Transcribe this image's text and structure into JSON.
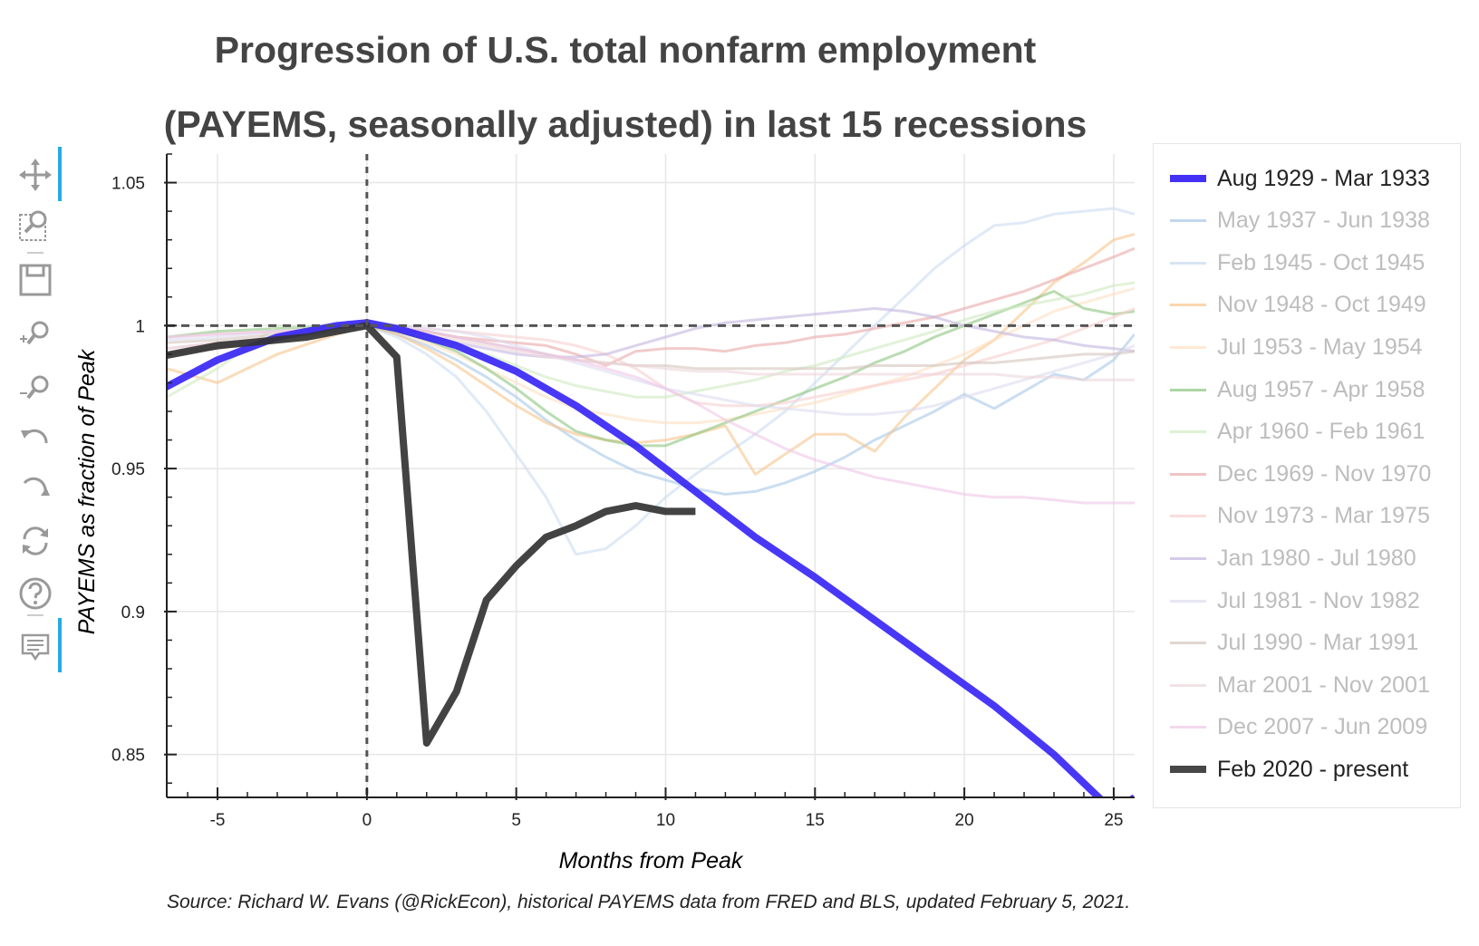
{
  "title_line1": "Progression of U.S. total nonfarm employment",
  "title_line2": "(PAYEMS, seasonally adjusted) in last 15 recessions",
  "source": "Source: Richard W. Evans (@RickEcon), historical PAYEMS data from FRED and BLS, updated February 5, 2021.",
  "toolbar": {
    "tools": [
      {
        "name": "pan-icon",
        "active": true
      },
      {
        "name": "box-zoom-icon",
        "active": false
      },
      {
        "name": "save-icon",
        "active": false
      },
      {
        "name": "zoom-in-icon",
        "active": false
      },
      {
        "name": "zoom-out-icon",
        "active": false
      },
      {
        "name": "undo-icon",
        "active": false
      },
      {
        "name": "redo-icon",
        "active": false
      },
      {
        "name": "reset-icon",
        "active": false
      },
      {
        "name": "help-icon",
        "active": false
      },
      {
        "name": "hover-icon",
        "active": true
      }
    ],
    "accent_color": "#26aae1"
  },
  "chart_data": {
    "type": "line",
    "xlabel": "Months from Peak",
    "ylabel": "PAYEMS as fraction of Peak",
    "xlim": [
      -6.7,
      25.7
    ],
    "ylim": [
      0.835,
      1.06
    ],
    "xticks": [
      -5,
      0,
      5,
      10,
      15,
      20,
      25
    ],
    "xtick_labels": [
      "-5",
      "0",
      "5",
      "10",
      "15",
      "20",
      "25"
    ],
    "yticks": [
      0.85,
      0.9,
      0.95,
      1.0,
      1.05
    ],
    "ytick_labels": [
      "0.85",
      "0.9",
      "0.95",
      "1",
      "1.05"
    ],
    "grid": true,
    "reference_lines": {
      "vertical_x": 0,
      "horizontal_y": 1.0
    },
    "legend_position": "right",
    "series": [
      {
        "name": "Aug 1929 - Mar 1933",
        "color": "#2f1cf5",
        "opacity": 0.88,
        "width": 8,
        "x": [
          -7,
          -5,
          -3,
          -1,
          0,
          1,
          3,
          5,
          7,
          9,
          11,
          13,
          15,
          17,
          19,
          21,
          23,
          25,
          25.7
        ],
        "y": [
          0.977,
          0.988,
          0.996,
          1.0,
          1.001,
          0.999,
          0.993,
          0.984,
          0.972,
          0.958,
          0.942,
          0.926,
          0.912,
          0.897,
          0.882,
          0.867,
          0.85,
          0.83,
          0.835
        ]
      },
      {
        "name": "May 1937 - Jun 1938",
        "color": "#a6c8e8",
        "opacity": 0.6,
        "width": 3,
        "x": [
          -6.7,
          -5,
          -3,
          -1,
          0,
          1,
          2,
          3,
          4,
          5,
          6,
          7,
          8,
          9,
          10,
          11,
          12,
          13,
          14,
          15,
          16,
          17,
          18,
          19,
          20,
          21,
          22,
          23,
          24,
          25,
          25.7
        ],
        "y": [
          0.99,
          0.992,
          0.995,
          0.998,
          1.0,
          0.997,
          0.993,
          0.988,
          0.982,
          0.975,
          0.967,
          0.96,
          0.954,
          0.949,
          0.946,
          0.943,
          0.941,
          0.942,
          0.945,
          0.949,
          0.954,
          0.96,
          0.965,
          0.97,
          0.976,
          0.971,
          0.977,
          0.983,
          0.981,
          0.988,
          0.997
        ]
      },
      {
        "name": "Feb 1945 - Oct 1945",
        "color": "#c6d8f0",
        "opacity": 0.55,
        "width": 3,
        "x": [
          -6.7,
          -5,
          -3,
          -1,
          0,
          1,
          2,
          3,
          4,
          5,
          6,
          7,
          8,
          9,
          10,
          11,
          12,
          13,
          14,
          15,
          16,
          17,
          18,
          19,
          20,
          21,
          22,
          23,
          24,
          25,
          25.7
        ],
        "y": [
          0.992,
          0.994,
          0.996,
          0.998,
          1.0,
          0.996,
          0.99,
          0.982,
          0.97,
          0.955,
          0.94,
          0.92,
          0.922,
          0.93,
          0.94,
          0.948,
          0.955,
          0.962,
          0.97,
          0.98,
          0.99,
          1.0,
          1.01,
          1.02,
          1.028,
          1.035,
          1.036,
          1.039,
          1.04,
          1.041,
          1.039
        ]
      },
      {
        "name": "Nov 1948 - Oct 1949",
        "color": "#f7c48c",
        "opacity": 0.6,
        "width": 3,
        "x": [
          -6.7,
          -5,
          -3,
          -1,
          0,
          1,
          2,
          3,
          4,
          5,
          6,
          7,
          8,
          9,
          10,
          11,
          12,
          13,
          14,
          15,
          16,
          17,
          18,
          19,
          20,
          21,
          22,
          23,
          24,
          25,
          25.7
        ],
        "y": [
          0.985,
          0.98,
          0.99,
          0.997,
          1.0,
          0.997,
          0.992,
          0.986,
          0.979,
          0.972,
          0.966,
          0.962,
          0.96,
          0.959,
          0.96,
          0.962,
          0.965,
          0.948,
          0.955,
          0.962,
          0.962,
          0.956,
          0.968,
          0.978,
          0.988,
          0.995,
          1.005,
          1.015,
          1.022,
          1.03,
          1.032
        ]
      },
      {
        "name": "Jul 1953 - May 1954",
        "color": "#fde0c2",
        "opacity": 0.6,
        "width": 3,
        "x": [
          -6.7,
          -5,
          -3,
          -1,
          0,
          1,
          2,
          3,
          4,
          5,
          6,
          7,
          8,
          9,
          10,
          11,
          12,
          13,
          14,
          15,
          16,
          17,
          18,
          19,
          20,
          21,
          22,
          23,
          24,
          25,
          25.7
        ],
        "y": [
          0.99,
          0.993,
          0.996,
          0.999,
          1.0,
          0.998,
          0.994,
          0.99,
          0.985,
          0.98,
          0.975,
          0.971,
          0.969,
          0.967,
          0.966,
          0.966,
          0.967,
          0.969,
          0.971,
          0.973,
          0.976,
          0.979,
          0.982,
          0.986,
          0.99,
          0.995,
          1.0,
          1.005,
          1.008,
          1.011,
          1.013
        ]
      },
      {
        "name": "Aug 1957 - Apr 1958",
        "color": "#8cc47e",
        "opacity": 0.6,
        "width": 3,
        "x": [
          -6.7,
          -5,
          -3,
          -1,
          0,
          1,
          2,
          3,
          4,
          5,
          6,
          7,
          8,
          9,
          10,
          11,
          12,
          13,
          14,
          15,
          16,
          17,
          18,
          19,
          20,
          21,
          22,
          23,
          24,
          25,
          25.7
        ],
        "y": [
          0.996,
          0.998,
          0.999,
          1.0,
          1.0,
          0.998,
          0.995,
          0.991,
          0.985,
          0.978,
          0.97,
          0.963,
          0.96,
          0.958,
          0.958,
          0.962,
          0.966,
          0.97,
          0.974,
          0.978,
          0.982,
          0.987,
          0.991,
          0.996,
          1.0,
          1.004,
          1.008,
          1.012,
          1.006,
          1.004,
          1.005
        ]
      },
      {
        "name": "Apr 1960 - Feb 1961",
        "color": "#cfeac0",
        "opacity": 0.6,
        "width": 3,
        "x": [
          -6.7,
          -5,
          -3,
          -1,
          0,
          1,
          2,
          3,
          4,
          5,
          6,
          7,
          8,
          9,
          10,
          11,
          12,
          13,
          14,
          15,
          16,
          17,
          18,
          19,
          20,
          21,
          22,
          23,
          24,
          25,
          25.7
        ],
        "y": [
          0.975,
          0.985,
          1.0,
          0.999,
          1.0,
          0.999,
          0.996,
          0.993,
          0.99,
          0.986,
          0.982,
          0.979,
          0.977,
          0.975,
          0.975,
          0.977,
          0.979,
          0.981,
          0.984,
          0.986,
          0.989,
          0.992,
          0.995,
          0.998,
          1.002,
          1.005,
          1.007,
          1.009,
          1.011,
          1.014,
          1.015
        ]
      },
      {
        "name": "Dec 1969 - Nov 1970",
        "color": "#e9a9a9",
        "opacity": 0.6,
        "width": 3,
        "x": [
          -6.7,
          -5,
          -3,
          -1,
          0,
          1,
          2,
          3,
          4,
          5,
          6,
          7,
          8,
          9,
          10,
          11,
          12,
          13,
          14,
          15,
          16,
          17,
          18,
          19,
          20,
          21,
          22,
          23,
          24,
          25,
          25.7
        ],
        "y": [
          0.99,
          0.992,
          0.995,
          0.998,
          1.0,
          0.999,
          0.998,
          0.996,
          0.995,
          0.994,
          0.993,
          0.99,
          0.986,
          0.991,
          0.992,
          0.992,
          0.991,
          0.993,
          0.994,
          0.996,
          0.997,
          0.999,
          1.001,
          1.003,
          1.006,
          1.009,
          1.012,
          1.016,
          1.02,
          1.024,
          1.027
        ]
      },
      {
        "name": "Nov 1973 - Mar 1975",
        "color": "#f7cfcf",
        "opacity": 0.6,
        "width": 3,
        "x": [
          -6.7,
          -5,
          -3,
          -1,
          0,
          1,
          2,
          3,
          4,
          5,
          6,
          7,
          8,
          9,
          10,
          11,
          12,
          13,
          14,
          15,
          16,
          17,
          18,
          19,
          20,
          21,
          22,
          23,
          24,
          25,
          25.7
        ],
        "y": [
          0.992,
          0.994,
          0.996,
          0.998,
          1.0,
          1.0,
          0.999,
          0.998,
          0.997,
          0.996,
          0.995,
          0.993,
          0.99,
          0.985,
          0.978,
          0.973,
          0.972,
          0.972,
          0.973,
          0.975,
          0.977,
          0.979,
          0.981,
          0.983,
          0.986,
          0.989,
          0.992,
          0.995,
          0.999,
          1.003,
          1.006
        ]
      },
      {
        "name": "Jan 1980 - Jul 1980",
        "color": "#c3b5e0",
        "opacity": 0.6,
        "width": 3,
        "x": [
          -6.7,
          -5,
          -3,
          -1,
          0,
          1,
          2,
          3,
          4,
          5,
          6,
          7,
          8,
          9,
          10,
          11,
          12,
          13,
          14,
          15,
          16,
          17,
          18,
          19,
          20,
          21,
          22,
          23,
          24,
          25,
          25.7
        ],
        "y": [
          0.99,
          0.993,
          0.996,
          0.998,
          1.0,
          0.999,
          0.997,
          0.994,
          0.992,
          0.99,
          0.989,
          0.989,
          0.99,
          0.993,
          0.996,
          0.999,
          1.001,
          1.002,
          1.003,
          1.004,
          1.005,
          1.006,
          1.005,
          1.003,
          1.0,
          0.998,
          0.996,
          0.995,
          0.993,
          0.992,
          0.991
        ]
      },
      {
        "name": "Jul 1981 - Nov 1982",
        "color": "#dcdcf0",
        "opacity": 0.6,
        "width": 3,
        "x": [
          -6.7,
          -5,
          -3,
          -1,
          0,
          1,
          2,
          3,
          4,
          5,
          6,
          7,
          8,
          9,
          10,
          11,
          12,
          13,
          14,
          15,
          16,
          17,
          18,
          19,
          20,
          21,
          22,
          23,
          24,
          25,
          25.7
        ],
        "y": [
          0.995,
          0.996,
          0.998,
          0.999,
          1.0,
          1.0,
          0.999,
          0.998,
          0.996,
          0.993,
          0.99,
          0.987,
          0.984,
          0.981,
          0.978,
          0.976,
          0.974,
          0.972,
          0.971,
          0.97,
          0.969,
          0.969,
          0.97,
          0.972,
          0.975,
          0.978,
          0.981,
          0.984,
          0.987,
          0.99,
          0.993
        ]
      },
      {
        "name": "Jul 1990 - Mar 1991",
        "color": "#d4c5bd",
        "opacity": 0.6,
        "width": 3,
        "x": [
          -6.7,
          -5,
          -3,
          -1,
          0,
          1,
          2,
          3,
          4,
          5,
          6,
          7,
          8,
          9,
          10,
          11,
          12,
          13,
          14,
          15,
          16,
          17,
          18,
          19,
          20,
          21,
          22,
          23,
          24,
          25,
          25.7
        ],
        "y": [
          0.994,
          0.995,
          0.997,
          0.999,
          1.0,
          0.999,
          0.998,
          0.996,
          0.994,
          0.992,
          0.99,
          0.988,
          0.987,
          0.986,
          0.986,
          0.985,
          0.985,
          0.985,
          0.985,
          0.985,
          0.985,
          0.986,
          0.986,
          0.986,
          0.987,
          0.987,
          0.988,
          0.989,
          0.99,
          0.99,
          0.991
        ]
      },
      {
        "name": "Mar 2001 - Nov 2001",
        "color": "#ecd6da",
        "opacity": 0.6,
        "width": 3,
        "x": [
          -6.7,
          -5,
          -3,
          -1,
          0,
          1,
          2,
          3,
          4,
          5,
          6,
          7,
          8,
          9,
          10,
          11,
          12,
          13,
          14,
          15,
          16,
          17,
          18,
          19,
          20,
          21,
          22,
          23,
          24,
          25,
          25.7
        ],
        "y": [
          0.996,
          0.997,
          0.998,
          0.999,
          1.0,
          0.999,
          0.997,
          0.995,
          0.993,
          0.991,
          0.989,
          0.988,
          0.987,
          0.986,
          0.985,
          0.984,
          0.984,
          0.983,
          0.983,
          0.983,
          0.983,
          0.983,
          0.983,
          0.983,
          0.983,
          0.983,
          0.982,
          0.982,
          0.981,
          0.981,
          0.981
        ]
      },
      {
        "name": "Dec 2007 - Jun 2009",
        "color": "#f0c6e8",
        "opacity": 0.6,
        "width": 3,
        "x": [
          -6.7,
          -5,
          -3,
          -1,
          0,
          1,
          2,
          3,
          4,
          5,
          6,
          7,
          8,
          9,
          10,
          11,
          12,
          13,
          14,
          15,
          16,
          17,
          18,
          19,
          20,
          21,
          22,
          23,
          24,
          25,
          25.7
        ],
        "y": [
          0.996,
          0.997,
          0.998,
          0.999,
          1.0,
          0.999,
          0.998,
          0.996,
          0.994,
          0.992,
          0.99,
          0.988,
          0.985,
          0.982,
          0.978,
          0.973,
          0.967,
          0.962,
          0.957,
          0.953,
          0.95,
          0.947,
          0.945,
          0.943,
          0.941,
          0.94,
          0.94,
          0.939,
          0.938,
          0.938,
          0.938
        ]
      },
      {
        "name": "Feb 2020 - present",
        "color": "#333333",
        "opacity": 0.92,
        "width": 8,
        "x": [
          -7,
          -6,
          -5,
          -4,
          -3,
          -2,
          -1,
          0,
          1,
          2,
          3,
          4,
          5,
          6,
          7,
          8,
          9,
          10,
          11
        ],
        "y": [
          0.989,
          0.991,
          0.993,
          0.994,
          0.995,
          0.996,
          0.998,
          1.0,
          0.989,
          0.854,
          0.872,
          0.904,
          0.916,
          0.926,
          0.93,
          0.935,
          0.937,
          0.935,
          0.935
        ]
      }
    ]
  }
}
